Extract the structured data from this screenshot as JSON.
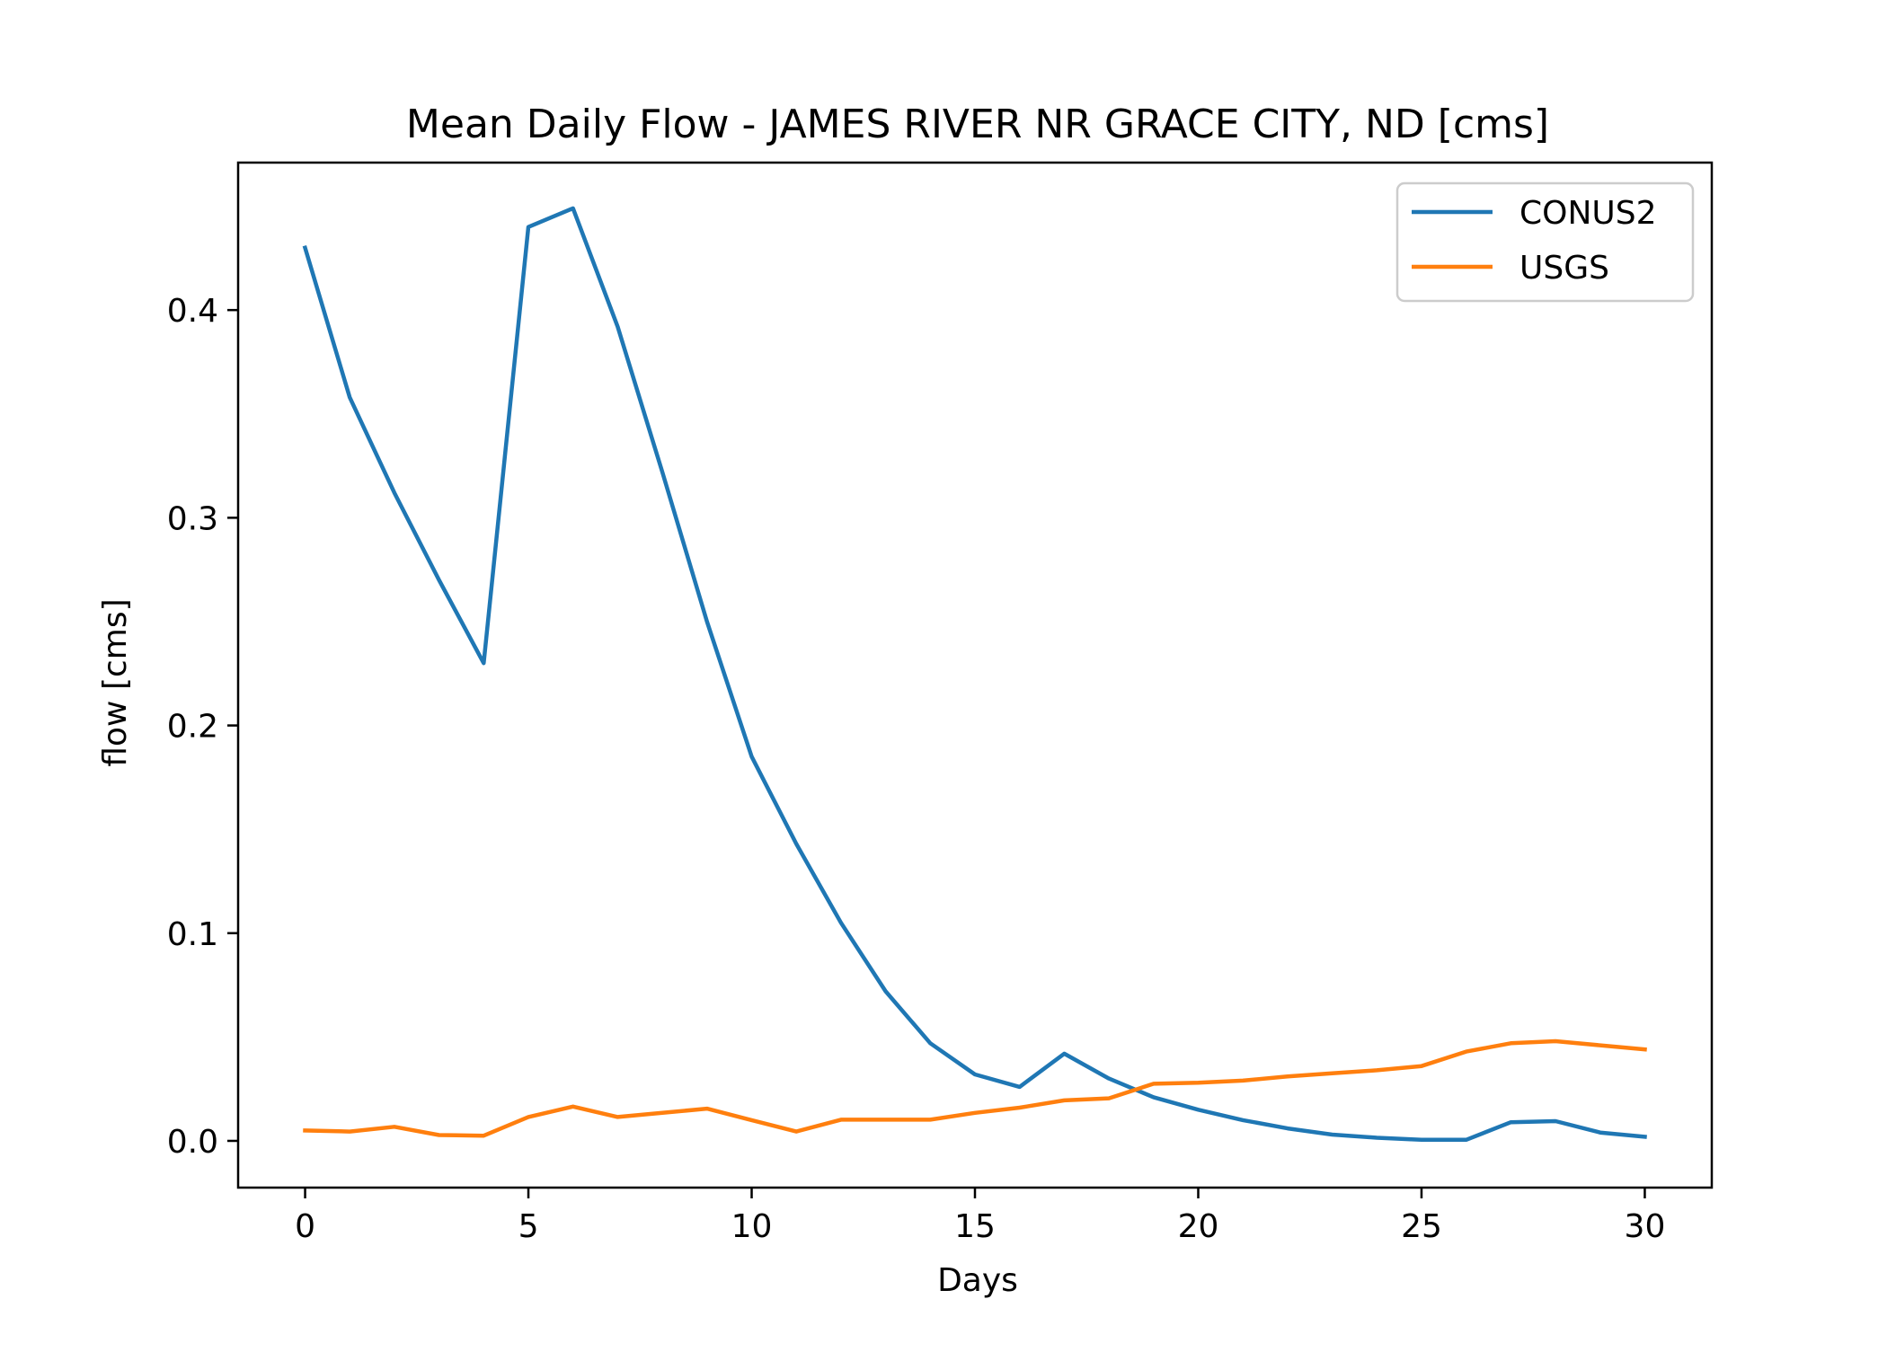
{
  "chart_data": {
    "type": "line",
    "title": "Mean Daily Flow - JAMES RIVER NR GRACE CITY, ND [cms]",
    "xlabel": "Days",
    "ylabel": "flow [cms]",
    "xlim": [
      -1.5,
      31.5
    ],
    "ylim": [
      -0.0225,
      0.471
    ],
    "xticks": [
      0,
      5,
      10,
      15,
      20,
      25,
      30
    ],
    "xtick_labels": [
      "0",
      "5",
      "10",
      "15",
      "20",
      "25",
      "30"
    ],
    "yticks": [
      0.0,
      0.1,
      0.2,
      0.3,
      0.4
    ],
    "ytick_labels": [
      "0.0",
      "0.1",
      "0.2",
      "0.3",
      "0.4"
    ],
    "grid": false,
    "legend_position": "top-right",
    "x": [
      0,
      1,
      2,
      3,
      4,
      5,
      6,
      7,
      8,
      9,
      10,
      11,
      12,
      13,
      14,
      15,
      16,
      17,
      18,
      19,
      20,
      21,
      22,
      23,
      24,
      25,
      26,
      27,
      28,
      29,
      30
    ],
    "series": [
      {
        "name": "CONUS2",
        "color": "#1f77b4",
        "values": [
          0.43,
          0.358,
          0.312,
          0.27,
          0.23,
          0.44,
          0.449,
          0.392,
          0.322,
          0.25,
          0.185,
          0.143,
          0.105,
          0.072,
          0.047,
          0.032,
          0.026,
          0.042,
          0.03,
          0.021,
          0.015,
          0.01,
          0.006,
          0.003,
          0.0015,
          0.0005,
          0.0005,
          0.009,
          0.0095,
          0.004,
          0.002
        ]
      },
      {
        "name": "USGS",
        "color": "#ff7f0e",
        "values": [
          0.005,
          0.0045,
          0.0068,
          0.0028,
          0.0025,
          0.0115,
          0.0165,
          0.0115,
          0.0135,
          0.0155,
          0.01,
          0.0045,
          0.0102,
          0.0102,
          0.0102,
          0.0135,
          0.016,
          0.0195,
          0.0205,
          0.0275,
          0.028,
          0.029,
          0.031,
          0.0325,
          0.034,
          0.036,
          0.043,
          0.047,
          0.048,
          0.046,
          0.044
        ]
      }
    ]
  }
}
